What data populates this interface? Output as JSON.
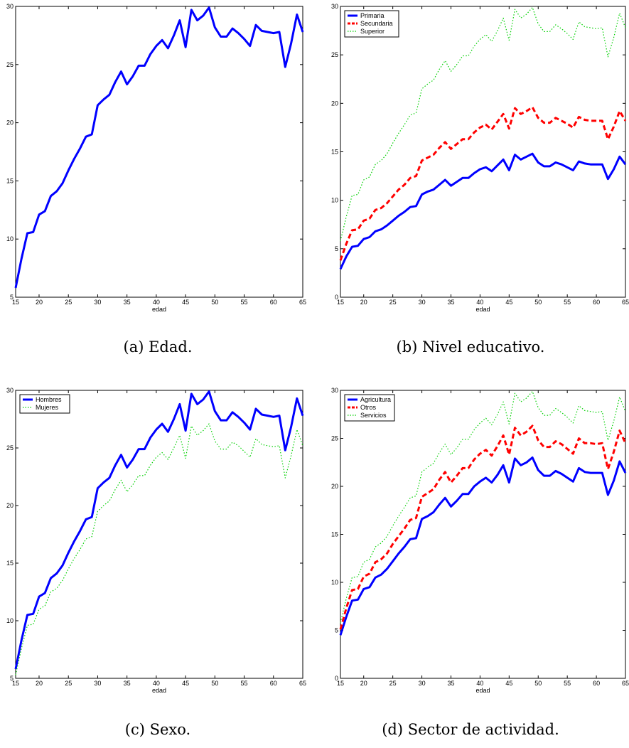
{
  "chart_data": [
    {
      "id": "a",
      "type": "line",
      "caption": "(a) Edad.",
      "xlabel": "edad",
      "ylabel": "",
      "xlim": [
        16,
        65
      ],
      "ylim": [
        5,
        30
      ],
      "xticks": [
        15,
        20,
        25,
        30,
        35,
        40,
        45,
        50,
        55,
        60,
        65
      ],
      "yticks": [
        5,
        10,
        15,
        20,
        25,
        30
      ],
      "legend": null,
      "series": [
        {
          "name": "",
          "color": "#0000ff",
          "style": "solid",
          "width": 3,
          "x": [
            16,
            17,
            18,
            19,
            20,
            21,
            22,
            23,
            24,
            25,
            26,
            27,
            28,
            29,
            30,
            31,
            32,
            33,
            34,
            35,
            36,
            37,
            38,
            39,
            40,
            41,
            42,
            43,
            44,
            45,
            46,
            47,
            48,
            49,
            50,
            51,
            52,
            53,
            54,
            55,
            56,
            57,
            58,
            59,
            60,
            61,
            62,
            63,
            64,
            65
          ],
          "y": [
            5.8,
            8.3,
            10.5,
            10.6,
            12.1,
            12.4,
            13.7,
            14.1,
            14.8,
            15.9,
            16.9,
            17.8,
            18.8,
            19.0,
            21.5,
            22.0,
            22.4,
            23.5,
            24.4,
            23.3,
            24.0,
            24.9,
            24.9,
            25.9,
            26.6,
            27.1,
            26.4,
            27.5,
            28.8,
            26.5,
            29.7,
            28.8,
            29.2,
            29.9,
            28.2,
            27.4,
            27.4,
            28.1,
            27.7,
            27.2,
            26.6,
            28.4,
            27.9,
            27.8,
            27.7,
            27.8,
            24.8,
            26.8,
            29.3,
            27.8
          ]
        }
      ]
    },
    {
      "id": "b",
      "type": "line",
      "caption": "(b) Nivel educativo.",
      "xlabel": "edad",
      "ylabel": "",
      "xlim": [
        16,
        65
      ],
      "ylim": [
        0,
        30
      ],
      "xticks": [
        15,
        20,
        25,
        30,
        35,
        40,
        45,
        50,
        55,
        60,
        65
      ],
      "yticks": [
        0,
        5,
        10,
        15,
        20,
        25,
        30
      ],
      "legend": "top-left",
      "series": [
        {
          "name": "Primaria",
          "color": "#0000ff",
          "style": "solid",
          "width": 3,
          "x": [
            16,
            17,
            18,
            19,
            20,
            21,
            22,
            23,
            24,
            25,
            26,
            27,
            28,
            29,
            30,
            31,
            32,
            33,
            34,
            35,
            36,
            37,
            38,
            39,
            40,
            41,
            42,
            43,
            44,
            45,
            46,
            47,
            48,
            49,
            50,
            51,
            52,
            53,
            54,
            55,
            56,
            57,
            58,
            59,
            60,
            61,
            62,
            63,
            64,
            65
          ],
          "y": [
            2.9,
            4.2,
            5.2,
            5.3,
            6.0,
            6.2,
            6.8,
            7.0,
            7.4,
            7.9,
            8.4,
            8.8,
            9.3,
            9.4,
            10.6,
            10.9,
            11.1,
            11.6,
            12.1,
            11.5,
            11.9,
            12.3,
            12.3,
            12.8,
            13.2,
            13.4,
            13.0,
            13.6,
            14.2,
            13.1,
            14.7,
            14.2,
            14.5,
            14.8,
            13.9,
            13.5,
            13.5,
            13.9,
            13.7,
            13.4,
            13.1,
            14.0,
            13.8,
            13.7,
            13.7,
            13.7,
            12.2,
            13.2,
            14.5,
            13.7
          ]
        },
        {
          "name": "Secundaria",
          "color": "#ff0000",
          "style": "dashed",
          "width": 3,
          "x": [
            16,
            17,
            18,
            19,
            20,
            21,
            22,
            23,
            24,
            25,
            26,
            27,
            28,
            29,
            30,
            31,
            32,
            33,
            34,
            35,
            36,
            37,
            38,
            39,
            40,
            41,
            42,
            43,
            44,
            45,
            46,
            47,
            48,
            49,
            50,
            51,
            52,
            53,
            54,
            55,
            56,
            57,
            58,
            59,
            60,
            61,
            62,
            63,
            64,
            65
          ],
          "y": [
            3.8,
            5.5,
            6.9,
            7.0,
            7.9,
            8.1,
            9.0,
            9.2,
            9.7,
            10.4,
            11.1,
            11.6,
            12.3,
            12.5,
            14.1,
            14.4,
            14.7,
            15.4,
            16.0,
            15.3,
            15.8,
            16.3,
            16.3,
            17.0,
            17.5,
            17.8,
            17.3,
            18.1,
            18.9,
            17.4,
            19.5,
            18.9,
            19.2,
            19.6,
            18.5,
            18.0,
            18.0,
            18.5,
            18.2,
            17.9,
            17.5,
            18.6,
            18.3,
            18.2,
            18.2,
            18.2,
            16.3,
            17.6,
            19.2,
            18.2
          ]
        },
        {
          "name": "Superior",
          "color": "#00d000",
          "style": "dotted",
          "width": 1.2,
          "x": [
            16,
            17,
            18,
            19,
            20,
            21,
            22,
            23,
            24,
            25,
            26,
            27,
            28,
            29,
            30,
            31,
            32,
            33,
            34,
            35,
            36,
            37,
            38,
            39,
            40,
            41,
            42,
            43,
            44,
            45,
            46,
            47,
            48,
            49,
            50,
            51,
            52,
            53,
            54,
            55,
            56,
            57,
            58,
            59,
            60,
            61,
            62,
            63,
            64,
            65
          ],
          "y": [
            5.8,
            8.3,
            10.5,
            10.6,
            12.1,
            12.4,
            13.7,
            14.1,
            14.8,
            15.9,
            16.9,
            17.8,
            18.8,
            19.0,
            21.5,
            22.0,
            22.4,
            23.5,
            24.4,
            23.3,
            24.0,
            24.9,
            24.9,
            25.9,
            26.6,
            27.1,
            26.4,
            27.5,
            28.8,
            26.5,
            29.7,
            28.8,
            29.2,
            29.9,
            28.2,
            27.4,
            27.4,
            28.1,
            27.7,
            27.2,
            26.6,
            28.4,
            27.9,
            27.8,
            27.7,
            27.8,
            24.8,
            26.8,
            29.3,
            27.8
          ]
        }
      ]
    },
    {
      "id": "c",
      "type": "line",
      "caption": "(c) Sexo.",
      "xlabel": "edad",
      "ylabel": "",
      "xlim": [
        16,
        65
      ],
      "ylim": [
        5,
        30
      ],
      "xticks": [
        15,
        20,
        25,
        30,
        35,
        40,
        45,
        50,
        55,
        60,
        65
      ],
      "yticks": [
        5,
        10,
        15,
        20,
        25,
        30
      ],
      "legend": "top-left",
      "series": [
        {
          "name": "Hombres",
          "color": "#0000ff",
          "style": "solid",
          "width": 3,
          "x": [
            16,
            17,
            18,
            19,
            20,
            21,
            22,
            23,
            24,
            25,
            26,
            27,
            28,
            29,
            30,
            31,
            32,
            33,
            34,
            35,
            36,
            37,
            38,
            39,
            40,
            41,
            42,
            43,
            44,
            45,
            46,
            47,
            48,
            49,
            50,
            51,
            52,
            53,
            54,
            55,
            56,
            57,
            58,
            59,
            60,
            61,
            62,
            63,
            64,
            65
          ],
          "y": [
            5.8,
            8.3,
            10.5,
            10.6,
            12.1,
            12.4,
            13.7,
            14.1,
            14.8,
            15.9,
            16.9,
            17.8,
            18.8,
            19.0,
            21.5,
            22.0,
            22.4,
            23.5,
            24.4,
            23.3,
            24.0,
            24.9,
            24.9,
            25.9,
            26.6,
            27.1,
            26.4,
            27.5,
            28.8,
            26.5,
            29.7,
            28.8,
            29.2,
            29.9,
            28.2,
            27.4,
            27.4,
            28.1,
            27.7,
            27.2,
            26.6,
            28.4,
            27.9,
            27.8,
            27.7,
            27.8,
            24.8,
            26.8,
            29.3,
            27.8
          ]
        },
        {
          "name": "Mujeres",
          "color": "#00d000",
          "style": "dotted",
          "width": 1.2,
          "x": [
            16,
            17,
            18,
            19,
            20,
            21,
            22,
            23,
            24,
            25,
            26,
            27,
            28,
            29,
            30,
            31,
            32,
            33,
            34,
            35,
            36,
            37,
            38,
            39,
            40,
            41,
            42,
            43,
            44,
            45,
            46,
            47,
            48,
            49,
            50,
            51,
            52,
            53,
            54,
            55,
            56,
            57,
            58,
            59,
            60,
            61,
            62,
            63,
            64,
            65
          ],
          "y": [
            5.3,
            7.6,
            9.6,
            9.7,
            11.0,
            11.3,
            12.5,
            12.8,
            13.5,
            14.5,
            15.4,
            16.2,
            17.1,
            17.3,
            19.5,
            20.0,
            20.4,
            21.4,
            22.2,
            21.2,
            21.8,
            22.6,
            22.6,
            23.5,
            24.2,
            24.6,
            24.0,
            25.0,
            26.1,
            24.1,
            26.9,
            26.1,
            26.5,
            27.1,
            25.6,
            24.9,
            24.9,
            25.5,
            25.2,
            24.7,
            24.2,
            25.8,
            25.3,
            25.2,
            25.1,
            25.2,
            22.4,
            24.3,
            26.6,
            25.2
          ]
        }
      ]
    },
    {
      "id": "d",
      "type": "line",
      "caption": "(d) Sector de actividad.",
      "xlabel": "edad",
      "ylabel": "",
      "xlim": [
        16,
        65
      ],
      "ylim": [
        0,
        30
      ],
      "xticks": [
        15,
        20,
        25,
        30,
        35,
        40,
        45,
        50,
        55,
        60,
        65
      ],
      "yticks": [
        0,
        5,
        10,
        15,
        20,
        25,
        30
      ],
      "legend": "top-left",
      "series": [
        {
          "name": "Agricultura",
          "color": "#0000ff",
          "style": "solid",
          "width": 3,
          "x": [
            16,
            17,
            18,
            19,
            20,
            21,
            22,
            23,
            24,
            25,
            26,
            27,
            28,
            29,
            30,
            31,
            32,
            33,
            34,
            35,
            36,
            37,
            38,
            39,
            40,
            41,
            42,
            43,
            44,
            45,
            46,
            47,
            48,
            49,
            50,
            51,
            52,
            53,
            54,
            55,
            56,
            57,
            58,
            59,
            60,
            61,
            62,
            63,
            64,
            65
          ],
          "y": [
            4.5,
            6.4,
            8.1,
            8.2,
            9.3,
            9.5,
            10.5,
            10.8,
            11.4,
            12.2,
            13.0,
            13.7,
            14.5,
            14.6,
            16.6,
            16.9,
            17.3,
            18.1,
            18.8,
            17.9,
            18.5,
            19.2,
            19.2,
            20.0,
            20.5,
            20.9,
            20.4,
            21.2,
            22.2,
            20.4,
            22.9,
            22.2,
            22.5,
            23.0,
            21.7,
            21.1,
            21.1,
            21.6,
            21.3,
            20.9,
            20.5,
            21.9,
            21.5,
            21.4,
            21.4,
            21.4,
            19.1,
            20.6,
            22.6,
            21.4
          ]
        },
        {
          "name": "Otros",
          "color": "#ff0000",
          "style": "dashed",
          "width": 3,
          "x": [
            16,
            17,
            18,
            19,
            20,
            21,
            22,
            23,
            24,
            25,
            26,
            27,
            28,
            29,
            30,
            31,
            32,
            33,
            34,
            35,
            36,
            37,
            38,
            39,
            40,
            41,
            42,
            43,
            44,
            45,
            46,
            47,
            48,
            49,
            50,
            51,
            52,
            53,
            54,
            55,
            56,
            57,
            58,
            59,
            60,
            61,
            62,
            63,
            64,
            65
          ],
          "y": [
            5.1,
            7.3,
            9.2,
            9.3,
            10.6,
            10.9,
            12.1,
            12.4,
            13.0,
            14.0,
            14.8,
            15.6,
            16.5,
            16.7,
            18.9,
            19.3,
            19.7,
            20.7,
            21.5,
            20.4,
            21.1,
            21.9,
            21.9,
            22.8,
            23.4,
            23.8,
            23.2,
            24.2,
            25.3,
            23.3,
            26.1,
            25.3,
            25.7,
            26.3,
            24.8,
            24.1,
            24.1,
            24.7,
            24.4,
            23.9,
            23.4,
            25.0,
            24.5,
            24.5,
            24.4,
            24.5,
            21.8,
            23.6,
            25.8,
            24.5
          ]
        },
        {
          "name": "Servicios",
          "color": "#00d000",
          "style": "dotted",
          "width": 1.2,
          "x": [
            16,
            17,
            18,
            19,
            20,
            21,
            22,
            23,
            24,
            25,
            26,
            27,
            28,
            29,
            30,
            31,
            32,
            33,
            34,
            35,
            36,
            37,
            38,
            39,
            40,
            41,
            42,
            43,
            44,
            45,
            46,
            47,
            48,
            49,
            50,
            51,
            52,
            53,
            54,
            55,
            56,
            57,
            58,
            59,
            60,
            61,
            62,
            63,
            64,
            65
          ],
          "y": [
            5.8,
            8.3,
            10.5,
            10.6,
            12.1,
            12.4,
            13.7,
            14.1,
            14.8,
            15.9,
            16.9,
            17.8,
            18.8,
            19.0,
            21.5,
            22.0,
            22.4,
            23.5,
            24.4,
            23.3,
            24.0,
            24.9,
            24.9,
            25.9,
            26.6,
            27.1,
            26.4,
            27.5,
            28.8,
            26.5,
            29.7,
            28.8,
            29.2,
            29.9,
            28.2,
            27.4,
            27.4,
            28.1,
            27.7,
            27.2,
            26.6,
            28.4,
            27.9,
            27.8,
            27.7,
            27.8,
            24.8,
            26.8,
            29.3,
            27.8
          ]
        }
      ]
    }
  ]
}
